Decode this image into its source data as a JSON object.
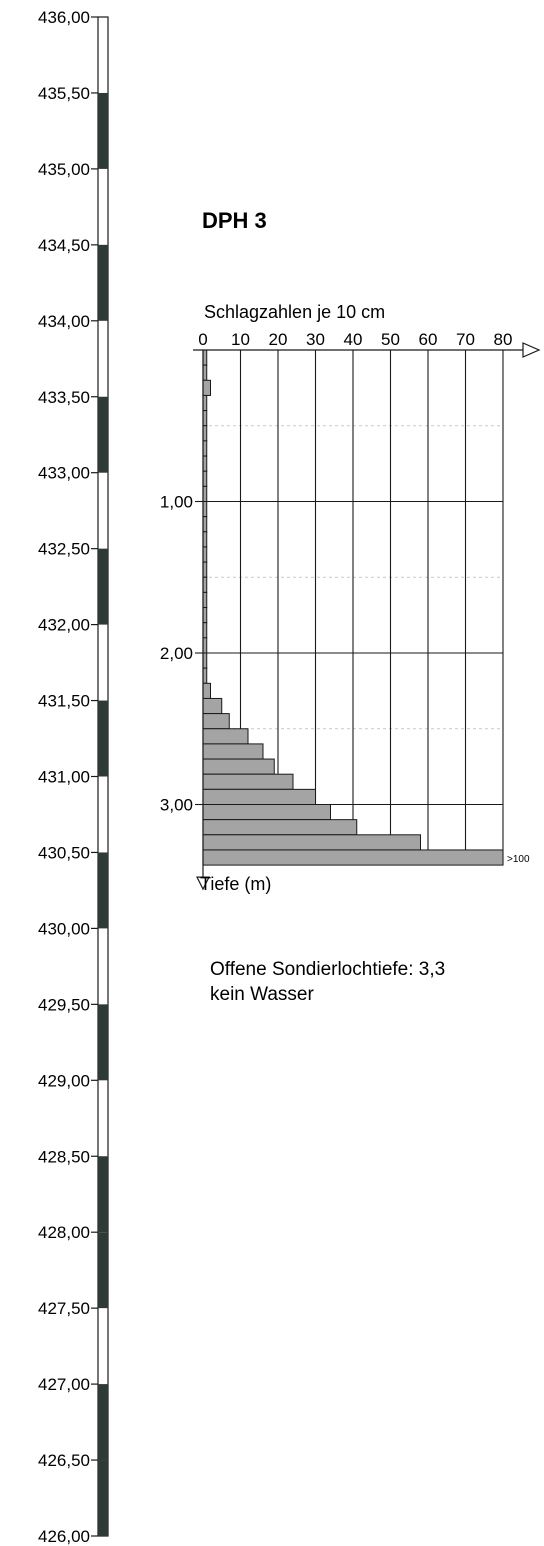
{
  "chart_data": {
    "type": "bar",
    "title": "DPH 3",
    "xlabel": "Schlagzahlen je 10 cm",
    "ylabel": "Tiefe (m)",
    "x_ticks": [
      "0",
      "10",
      "20",
      "30",
      "40",
      "50",
      "60",
      "70",
      "80"
    ],
    "xlim": [
      0,
      80
    ],
    "depth_ticks": [
      "1,00",
      "2,00",
      "3,00"
    ],
    "ylim_depth": [
      0,
      3.4
    ],
    "bar_thickness_m": 0.1,
    "bars": [
      {
        "depth_top": 0.0,
        "value": 1
      },
      {
        "depth_top": 0.1,
        "value": 1
      },
      {
        "depth_top": 0.2,
        "value": 2
      },
      {
        "depth_top": 0.3,
        "value": 1
      },
      {
        "depth_top": 0.4,
        "value": 1
      },
      {
        "depth_top": 0.5,
        "value": 1
      },
      {
        "depth_top": 0.6,
        "value": 1
      },
      {
        "depth_top": 0.7,
        "value": 1
      },
      {
        "depth_top": 0.8,
        "value": 1
      },
      {
        "depth_top": 0.9,
        "value": 1
      },
      {
        "depth_top": 1.0,
        "value": 1
      },
      {
        "depth_top": 1.1,
        "value": 1
      },
      {
        "depth_top": 1.2,
        "value": 1
      },
      {
        "depth_top": 1.3,
        "value": 1
      },
      {
        "depth_top": 1.4,
        "value": 1
      },
      {
        "depth_top": 1.5,
        "value": 1
      },
      {
        "depth_top": 1.6,
        "value": 1
      },
      {
        "depth_top": 1.7,
        "value": 1
      },
      {
        "depth_top": 1.8,
        "value": 1
      },
      {
        "depth_top": 1.9,
        "value": 1
      },
      {
        "depth_top": 2.0,
        "value": 1
      },
      {
        "depth_top": 2.1,
        "value": 1
      },
      {
        "depth_top": 2.2,
        "value": 2
      },
      {
        "depth_top": 2.3,
        "value": 5
      },
      {
        "depth_top": 2.4,
        "value": 7
      },
      {
        "depth_top": 2.5,
        "value": 12
      },
      {
        "depth_top": 2.6,
        "value": 16
      },
      {
        "depth_top": 2.7,
        "value": 19
      },
      {
        "depth_top": 2.8,
        "value": 24
      },
      {
        "depth_top": 2.9,
        "value": 30
      },
      {
        "depth_top": 3.0,
        "value": 34
      },
      {
        "depth_top": 3.1,
        "value": 41
      },
      {
        "depth_top": 3.2,
        "value": 58
      },
      {
        "depth_top": 3.3,
        "value": 80
      }
    ],
    "over_label": ">100",
    "bar_color": "#a4a4a4",
    "grid_color": "#1a1a1a",
    "grid_minor_color": "#c9c9c9",
    "elevation_scale": {
      "labels": [
        "436,00",
        "435,50",
        "435,00",
        "434,50",
        "434,00",
        "433,50",
        "433,00",
        "432,50",
        "432,00",
        "431,50",
        "431,00",
        "430,50",
        "430,00",
        "429,50",
        "429,00",
        "428,50",
        "428,00",
        "427,50",
        "427,00",
        "426,50",
        "426,00"
      ],
      "dark_segments": [
        1,
        3,
        5,
        7,
        9,
        11,
        13,
        15,
        16,
        18,
        19
      ],
      "bar_color": "#2d3a36"
    }
  },
  "notes": {
    "line1": "Offene Sondierlochtiefe: 3,3",
    "line2": "kein Wasser"
  }
}
